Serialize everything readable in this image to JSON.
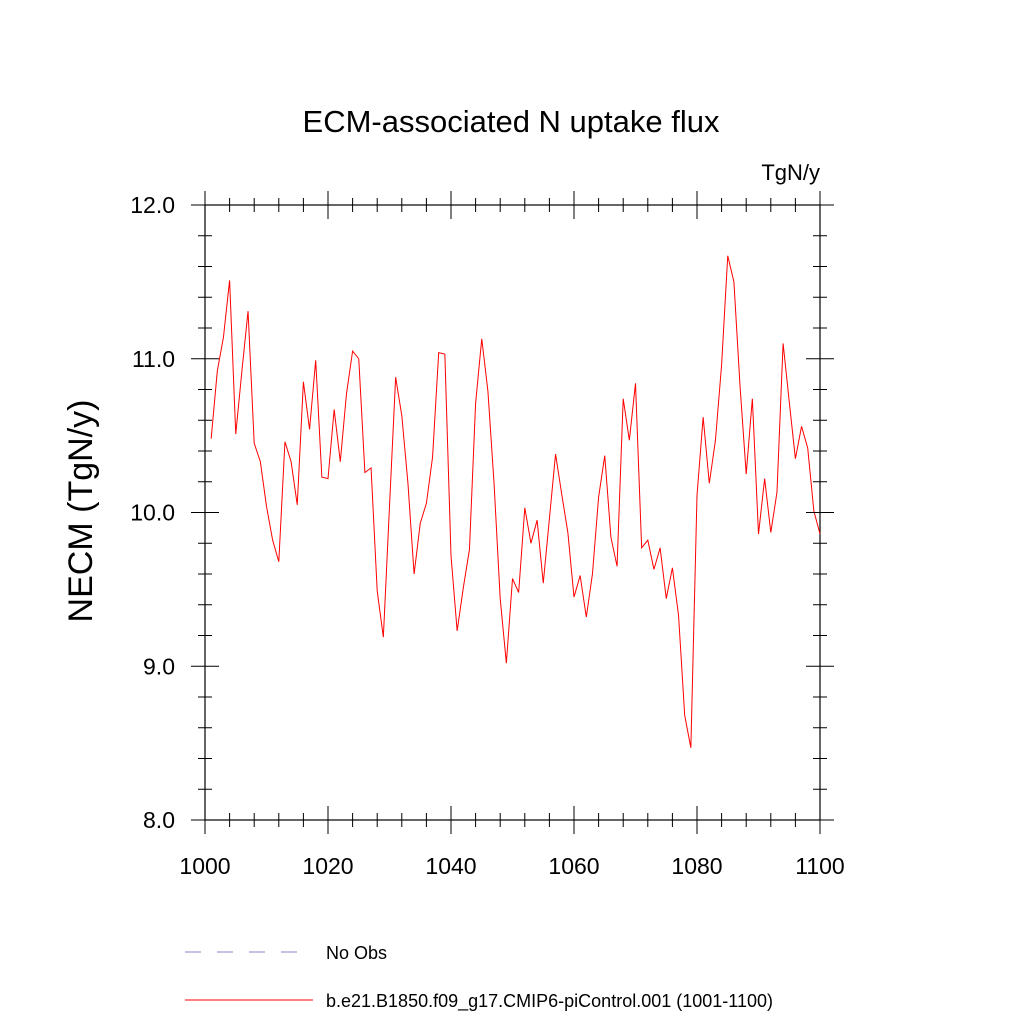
{
  "chart_data": {
    "type": "line",
    "title": "ECM-associated N uptake flux",
    "units": "TgN/y",
    "ylabel": "NECM  (TgN/y)",
    "xlabel": "",
    "xlim": [
      1000,
      1100
    ],
    "ylim": [
      8.0,
      12.0
    ],
    "x_ticks": [
      1000,
      1020,
      1040,
      1060,
      1080,
      1100
    ],
    "x_tick_labels": [
      "1000",
      "1020",
      "1040",
      "1060",
      "1080",
      "1100"
    ],
    "y_ticks": [
      8.0,
      9.0,
      10.0,
      11.0,
      12.0
    ],
    "y_tick_labels": [
      "8.0",
      "9.0",
      "10.0",
      "11.0",
      "12.0"
    ],
    "grid": false,
    "legend_position": "bottom",
    "series": [
      {
        "name": "No Obs",
        "color": "#8a86c8",
        "style": "dashed",
        "x": [],
        "values": []
      },
      {
        "name": "b.e21.B1850.f09_g17.CMIP6-piControl.001 (1001-1100)",
        "color": "#ff0000",
        "style": "solid",
        "x": [
          1001,
          1002,
          1003,
          1004,
          1005,
          1006,
          1007,
          1008,
          1009,
          1010,
          1011,
          1012,
          1013,
          1014,
          1015,
          1016,
          1017,
          1018,
          1019,
          1020,
          1021,
          1022,
          1023,
          1024,
          1025,
          1026,
          1027,
          1028,
          1029,
          1030,
          1031,
          1032,
          1033,
          1034,
          1035,
          1036,
          1037,
          1038,
          1039,
          1040,
          1041,
          1042,
          1043,
          1044,
          1045,
          1046,
          1047,
          1048,
          1049,
          1050,
          1051,
          1052,
          1053,
          1054,
          1055,
          1056,
          1057,
          1058,
          1059,
          1060,
          1061,
          1062,
          1063,
          1064,
          1065,
          1066,
          1067,
          1068,
          1069,
          1070,
          1071,
          1072,
          1073,
          1074,
          1075,
          1076,
          1077,
          1078,
          1079,
          1080,
          1081,
          1082,
          1083,
          1084,
          1085,
          1086,
          1087,
          1088,
          1089,
          1090,
          1091,
          1092,
          1093,
          1094,
          1095,
          1096,
          1097,
          1098,
          1099,
          1100
        ],
        "values": [
          10.48,
          10.92,
          11.14,
          11.51,
          10.51,
          10.92,
          11.31,
          10.45,
          10.33,
          10.04,
          9.82,
          9.68,
          10.46,
          10.33,
          10.05,
          10.85,
          10.54,
          10.99,
          10.23,
          10.22,
          10.67,
          10.33,
          10.77,
          11.05,
          11.0,
          10.26,
          10.29,
          9.49,
          9.19,
          10.04,
          10.88,
          10.63,
          10.19,
          9.6,
          9.93,
          10.06,
          10.36,
          11.04,
          11.03,
          9.72,
          9.23,
          9.51,
          9.76,
          10.71,
          11.13,
          10.79,
          10.19,
          9.44,
          9.02,
          9.57,
          9.48,
          10.03,
          9.8,
          9.95,
          9.54,
          9.96,
          10.38,
          10.12,
          9.87,
          9.45,
          9.59,
          9.32,
          9.6,
          10.1,
          10.37,
          9.84,
          9.65,
          10.74,
          10.47,
          10.84,
          9.77,
          9.82,
          9.63,
          9.77,
          9.44,
          9.64,
          9.33,
          8.68,
          8.47,
          10.11,
          10.62,
          10.19,
          10.47,
          10.96,
          11.67,
          11.5,
          10.82,
          10.25,
          10.74,
          9.86,
          10.22,
          9.87,
          10.13,
          11.1,
          10.72,
          10.35,
          10.56,
          10.42,
          10.01,
          9.86
        ]
      }
    ]
  }
}
